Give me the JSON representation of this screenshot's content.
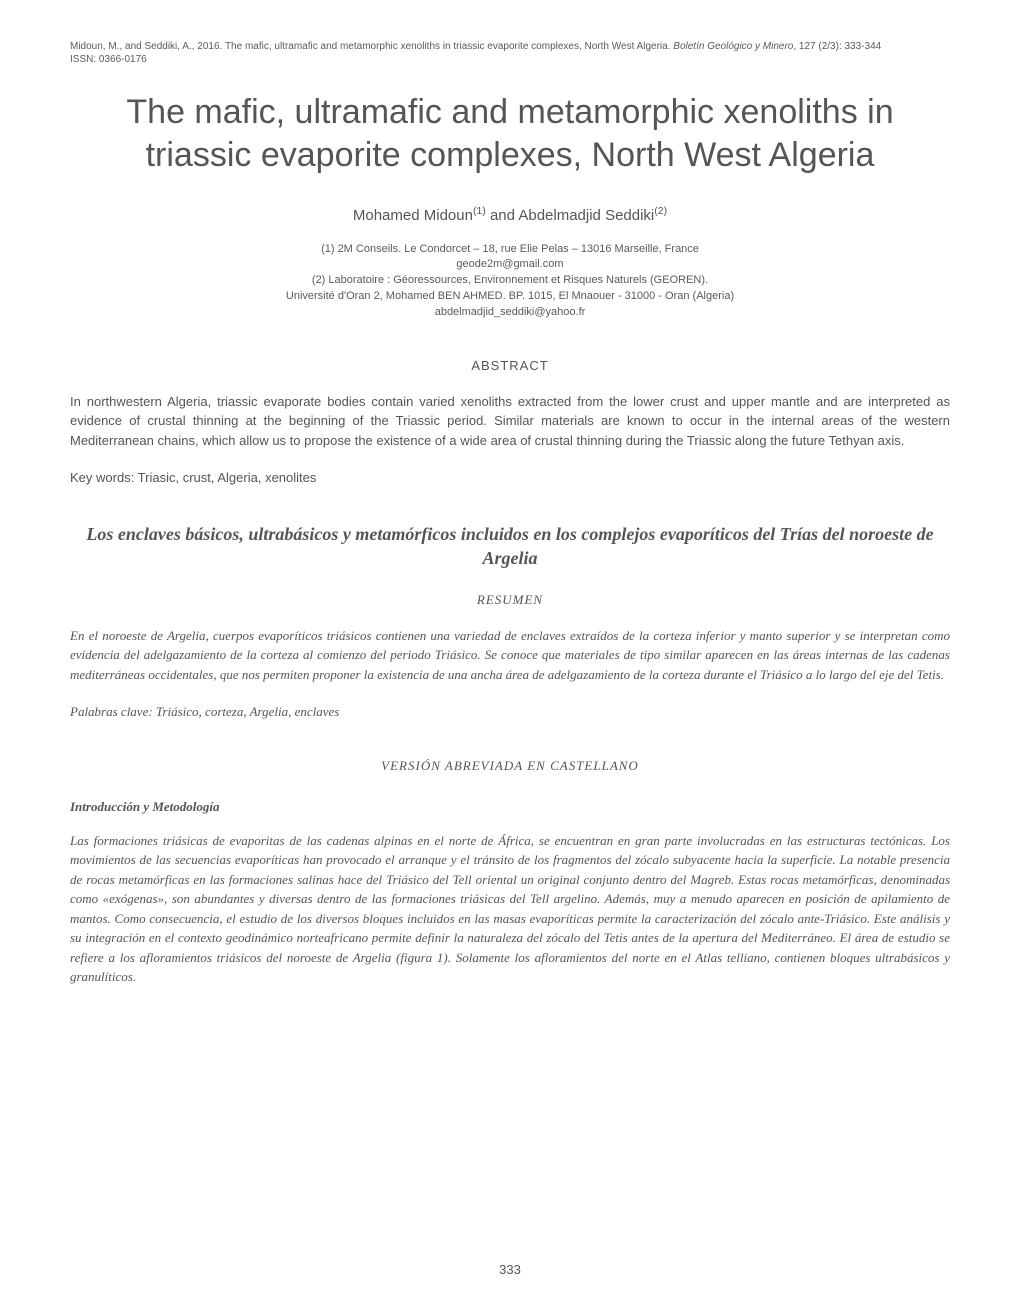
{
  "citation": {
    "authors_year": "Midoun, M., and Seddiki, A., 2016.",
    "article_title": "The mafic, ultramafic and metamorphic xenoliths in triassic evaporite complexes, North West Algeria.",
    "journal": "Boletín Geológico y Minero",
    "volume_pages": ", 127 (2/3): 333-344",
    "issn": "ISSN: 0366-0176"
  },
  "title": "The mafic, ultramafic and metamorphic xenoliths in triassic evaporite complexes, North West Algeria",
  "authors_line": "Mohamed Midoun(1) and Abdelmadjid Seddiki(2)",
  "author1": "Mohamed Midoun",
  "sup1": "(1)",
  "and": " and ",
  "author2": "Abdelmadjid Seddiki",
  "sup2": "(2)",
  "affiliations": {
    "line1": "(1) 2M Conseils. Le Condorcet – 18, rue Elie Pelas – 13016 Marseille, France",
    "line2": "geode2m@gmail.com",
    "line3": "(2) Laboratoire : Géoressources, Environnement et Risques Naturels (GEOREN).",
    "line4": "Université d'Oran 2, Mohamed  BEN AHMED. BP. 1015, El Mnaouer - 31000 - Oran (Algeria)",
    "line5": "abdelmadjid_seddiki@yahoo.fr"
  },
  "abstract_heading": "ABSTRACT",
  "abstract_body": "In northwestern Algeria, triassic evaporate bodies contain varied xenoliths extracted from the lower crust and upper mantle and are interpreted as evidence of crustal thinning at the beginning of the Triassic period. Similar materials are known to occur in the internal areas of the western Mediterranean chains, which allow us to propose the existence of a wide area of crustal thinning during the Triassic along the future Tethyan axis.",
  "keywords": "Key words: Triasic, crust, Algeria, xenolites",
  "spanish_title": "Los enclaves básicos, ultrabásicos y metamórficos incluidos en los complejos evaporíticos del Trías del noroeste de Argelia",
  "resumen_heading": "RESUMEN",
  "resumen_body": "En el noroeste de Argelia, cuerpos evaporíticos triásicos contienen una variedad de enclaves extraídos de la corteza inferior y manto superior y se interpretan como evidencia del adelgazamiento de la corteza al comienzo del periodo Triásico. Se conoce que materiales de tipo similar aparecen en las áreas internas de las cadenas mediterráneas occidentales, que nos permiten proponer la existencia de una ancha área de adelgazamiento de la corteza durante el Triásico  a lo largo del eje del Tetis.",
  "palabras": "Palabras clave: Triásico, corteza, Argelia, enclaves",
  "version_heading": "VERSIÓN ABREVIADA EN CASTELLANO",
  "intro_heading": "Introducción y Metodología",
  "intro_body": "Las formaciones triásicas de evaporitas de las cadenas alpinas en el norte de África, se encuentran en gran parte involucradas en las estructuras tectónicas. Los movimientos de las secuencias evaporíticas han provocado el arranque y el tránsito de los fragmentos del zócalo subyacente hacia la superficie. La notable presencia de rocas metamórficas en las formaciones salinas hace del Triásico del Tell oriental un original conjunto dentro del Magreb. Estas rocas metamórficas, denominadas como «exógenas», son abundantes y diversas dentro de las formaciones triásicas del Tell argelino. Además, muy a menudo aparecen en posición de apilamiento de mantos. Como consecuencia, el estudio de los diversos bloques incluidos en las masas evaporíticas permite la caracterización del zócalo ante-Triásico. Este análisis y su integración en el contexto geodinámico norteafricano permite definir la naturaleza del zócalo  del Tetis antes de la apertura del Mediterráneo. El área de estudio se refiere a los afloramientos triásicos del noroeste de Argelia (figura 1). Solamente los afloramientos del  norte en el Atlas telliano, contienen bloques ultrabásicos y granulíticos.",
  "page_number": "333"
}
